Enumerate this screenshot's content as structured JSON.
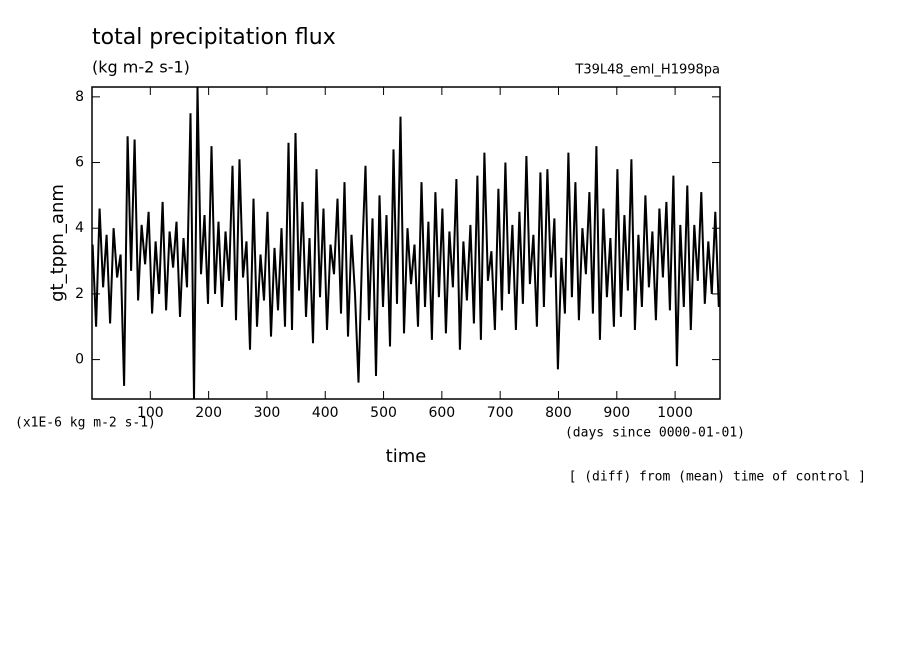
{
  "chart_data": {
    "type": "line",
    "title": "total precipitation flux",
    "subtitle": "(kg m-2 s-1)",
    "experiment": "T39L48_eml_H1998pa",
    "y_label": "gt_tppn_anm",
    "y_units": "(x1E-6 kg m-2 s-1)",
    "x_label": "time",
    "x_units": "(days since 0000-01-01)",
    "note": "[ (diff) from (mean) time of control ]",
    "xlim": [
      0,
      1077
    ],
    "ylim": [
      -1.2,
      8.3
    ],
    "xticks": [
      100,
      200,
      300,
      400,
      500,
      600,
      700,
      800,
      900,
      1000
    ],
    "yticks": [
      0,
      2,
      4,
      6,
      8
    ],
    "color": "#000000",
    "x": [
      1,
      7,
      13,
      19,
      25,
      31,
      37,
      43,
      49,
      55,
      61,
      67,
      73,
      79,
      85,
      91,
      97,
      103,
      109,
      115,
      121,
      127,
      133,
      139,
      145,
      151,
      157,
      163,
      169,
      175,
      181,
      187,
      193,
      199,
      205,
      211,
      217,
      223,
      229,
      235,
      241,
      247,
      253,
      259,
      265,
      271,
      277,
      283,
      289,
      295,
      301,
      307,
      313,
      319,
      325,
      331,
      337,
      343,
      349,
      355,
      361,
      367,
      373,
      379,
      385,
      391,
      397,
      403,
      409,
      415,
      421,
      427,
      433,
      439,
      445,
      451,
      457,
      463,
      469,
      475,
      481,
      487,
      493,
      499,
      505,
      511,
      517,
      523,
      529,
      535,
      541,
      547,
      553,
      559,
      565,
      571,
      577,
      583,
      589,
      595,
      601,
      607,
      613,
      619,
      625,
      631,
      637,
      643,
      649,
      655,
      661,
      667,
      673,
      679,
      685,
      691,
      697,
      703,
      709,
      715,
      721,
      727,
      733,
      739,
      745,
      751,
      757,
      763,
      769,
      775,
      781,
      787,
      793,
      799,
      805,
      811,
      817,
      823,
      829,
      835,
      841,
      847,
      853,
      859,
      865,
      871,
      877,
      883,
      889,
      895,
      901,
      907,
      913,
      919,
      925,
      931,
      937,
      943,
      949,
      955,
      961,
      967,
      973,
      979,
      985,
      991,
      997,
      1003,
      1009,
      1015,
      1021,
      1027,
      1033,
      1039,
      1045,
      1051,
      1057,
      1063,
      1069,
      1075
    ],
    "values": [
      3.5,
      1.0,
      4.6,
      2.2,
      3.8,
      1.1,
      4.0,
      2.5,
      3.2,
      -0.8,
      6.8,
      2.7,
      6.7,
      1.8,
      4.1,
      2.9,
      4.5,
      1.4,
      3.6,
      2.0,
      4.8,
      1.5,
      3.9,
      2.8,
      4.2,
      1.3,
      3.7,
      2.2,
      7.5,
      -1.2,
      8.3,
      2.6,
      4.4,
      1.7,
      6.5,
      2.0,
      4.2,
      1.6,
      3.9,
      2.4,
      5.9,
      1.2,
      6.1,
      2.5,
      3.6,
      0.3,
      4.9,
      1.0,
      3.2,
      1.8,
      4.5,
      0.7,
      3.4,
      1.5,
      4.0,
      1.0,
      6.6,
      0.9,
      6.9,
      2.1,
      4.8,
      1.3,
      3.7,
      0.5,
      5.8,
      1.9,
      4.6,
      0.9,
      3.5,
      2.6,
      4.9,
      1.4,
      5.4,
      0.7,
      3.8,
      2.0,
      -0.7,
      3.1,
      5.9,
      1.2,
      4.3,
      -0.5,
      5.0,
      1.6,
      4.4,
      0.4,
      6.4,
      1.7,
      7.4,
      0.8,
      4.0,
      2.3,
      3.5,
      1.0,
      5.4,
      1.6,
      4.2,
      0.6,
      5.1,
      1.9,
      4.6,
      0.8,
      3.9,
      2.2,
      5.5,
      0.3,
      3.6,
      1.8,
      4.1,
      1.1,
      5.6,
      0.6,
      6.3,
      2.4,
      3.3,
      0.9,
      5.2,
      1.5,
      6.0,
      2.0,
      4.1,
      0.9,
      4.5,
      1.7,
      6.2,
      2.3,
      3.8,
      1.0,
      5.7,
      1.6,
      5.8,
      2.5,
      4.3,
      -0.3,
      3.1,
      1.4,
      6.3,
      1.9,
      5.4,
      1.2,
      4.0,
      2.6,
      5.1,
      1.4,
      6.5,
      0.6,
      4.6,
      1.9,
      3.7,
      1.0,
      5.8,
      1.3,
      4.4,
      2.1,
      6.1,
      0.9,
      3.8,
      1.6,
      5.0,
      2.2,
      3.9,
      1.2,
      4.6,
      2.5,
      4.8,
      1.5,
      5.6,
      -0.2,
      4.1,
      1.6,
      5.3,
      0.9,
      4.1,
      2.4,
      5.1,
      1.7,
      3.6,
      2.0,
      4.5,
      1.6
    ]
  }
}
